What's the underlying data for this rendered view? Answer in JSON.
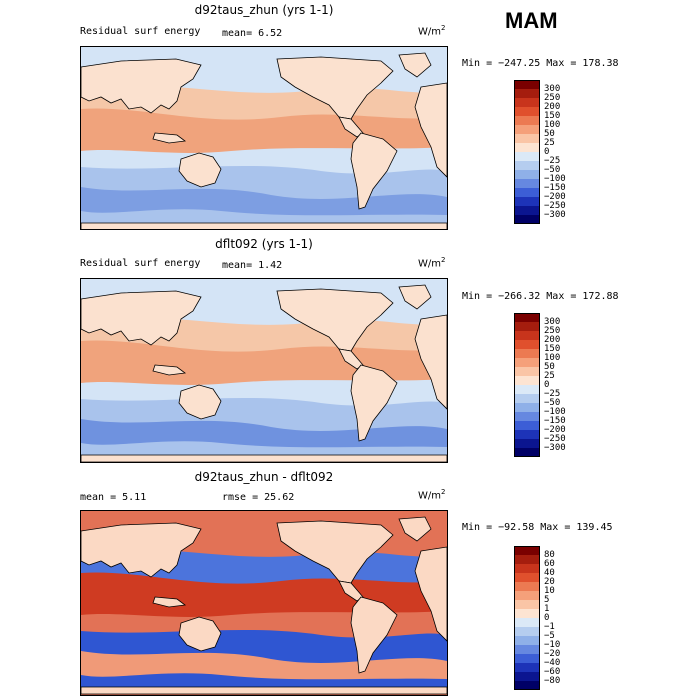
{
  "season": "MAM",
  "panels": [
    {
      "title": "d92taus_zhun (yrs 1-1)",
      "left_text": "Residual surf energy",
      "stat_text": "mean=   6.52",
      "units_base": "W/m",
      "units_exp": "2",
      "minmax": "Min = −247.25 Max = 178.38",
      "colorbar": {
        "levels": [
          "300",
          "250",
          "200",
          "150",
          "100",
          "50",
          "25",
          "0",
          "−25",
          "−50",
          "−100",
          "−150",
          "−200",
          "−250",
          "−300"
        ],
        "colors": [
          "#7a0000",
          "#a51d0e",
          "#c8341c",
          "#e0502d",
          "#ec7a52",
          "#f5a07a",
          "#fac5a6",
          "#fde4d2",
          "#dbe9f7",
          "#b5cdef",
          "#8fb0e8",
          "#6688e0",
          "#3c5ed6",
          "#1d33b8",
          "#0b1590",
          "#000066"
        ]
      },
      "map": {
        "ocean": "#d4e4f6",
        "land": "#fbe1cf",
        "band1": "#f0a37c",
        "band2": "#f5c7a8",
        "south": "#a9c3ec",
        "south2": "#7d9ee2"
      }
    },
    {
      "title": "dflt092 (yrs 1-1)",
      "left_text": "Residual surf energy",
      "stat_text": "mean=   1.42",
      "units_base": "W/m",
      "units_exp": "2",
      "minmax": "Min = −266.32 Max = 172.88",
      "colorbar": {
        "levels": [
          "300",
          "250",
          "200",
          "150",
          "100",
          "50",
          "25",
          "0",
          "−25",
          "−50",
          "−100",
          "−150",
          "−200",
          "−250",
          "−300"
        ],
        "colors": [
          "#7a0000",
          "#a51d0e",
          "#c8341c",
          "#e0502d",
          "#ec7a52",
          "#f5a07a",
          "#fac5a6",
          "#fde4d2",
          "#dbe9f7",
          "#b5cdef",
          "#8fb0e8",
          "#6688e0",
          "#3c5ed6",
          "#1d33b8",
          "#0b1590",
          "#000066"
        ]
      },
      "map": {
        "ocean": "#d4e4f6",
        "land": "#fbe1cf",
        "band1": "#f0a37c",
        "band2": "#f5c7a8",
        "south": "#a9c3ec",
        "south2": "#6f92df"
      }
    },
    {
      "title": "d92taus_zhun - dflt092",
      "left_text": "mean =   5.11",
      "stat_text": "rmse =  25.62",
      "units_base": "W/m",
      "units_exp": "2",
      "minmax": "Min = −92.58 Max = 139.45",
      "colorbar": {
        "levels": [
          "80",
          "60",
          "40",
          "20",
          "10",
          "5",
          "1",
          "0",
          "−1",
          "−5",
          "−10",
          "−20",
          "−40",
          "−60",
          "−80"
        ],
        "colors": [
          "#7a0000",
          "#a51d0e",
          "#c8341c",
          "#e0502d",
          "#ec7a52",
          "#f5a07a",
          "#fac5a6",
          "#fde4d2",
          "#dbe9f7",
          "#b5cdef",
          "#8fb0e8",
          "#6688e0",
          "#3c5ed6",
          "#1d33b8",
          "#0b1590",
          "#000066"
        ]
      },
      "map": {
        "ocean": "#e27256",
        "land": "#fbd9c4",
        "band1": "#cf3b22",
        "band2": "#4c74dc",
        "south": "#2f56d2",
        "south2": "#f09a78"
      }
    }
  ]
}
